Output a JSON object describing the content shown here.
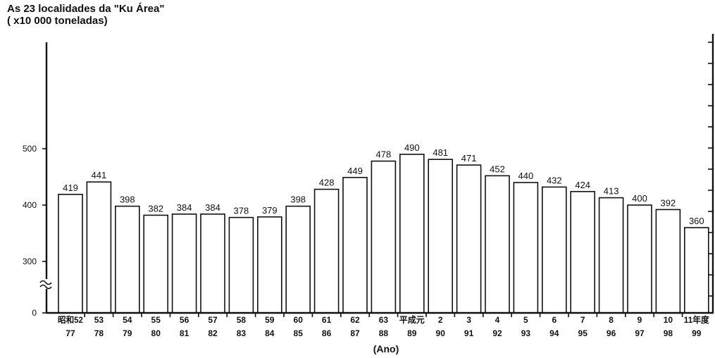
{
  "chart_data": {
    "type": "bar",
    "title": "As 23 localidades da \"Ku Área\"",
    "ylabel": "( x10 000 toneladas)",
    "xlabel": "(Ano)",
    "categories_top": [
      "昭和52",
      "53",
      "54",
      "55",
      "56",
      "57",
      "58",
      "59",
      "60",
      "61",
      "62",
      "63",
      "平成元",
      "2",
      "3",
      "4",
      "5",
      "6",
      "7",
      "8",
      "9",
      "10",
      "11年度"
    ],
    "categories_bottom": [
      "77",
      "78",
      "79",
      "80",
      "81",
      "82",
      "83",
      "84",
      "85",
      "86",
      "87",
      "88",
      "89",
      "90",
      "91",
      "92",
      "93",
      "94",
      "95",
      "96",
      "97",
      "98",
      "99"
    ],
    "values": [
      419,
      441,
      398,
      382,
      384,
      384,
      378,
      379,
      398,
      428,
      449,
      478,
      490,
      481,
      471,
      452,
      440,
      432,
      424,
      413,
      400,
      392,
      360
    ],
    "value_labels": [
      "419",
      "441",
      "398",
      "382",
      "384",
      "384",
      "378",
      "379",
      "398",
      "428",
      "449",
      "478",
      "490",
      "481",
      "471",
      "452",
      "440",
      "432",
      "424",
      "413",
      "400",
      "392",
      "360"
    ],
    "yticks": [
      0,
      300,
      400,
      500
    ],
    "ytick_labels": [
      "0",
      "300",
      "400",
      "500"
    ],
    "axis_break": true,
    "ylim": [
      0,
      600
    ],
    "grid": false
  }
}
